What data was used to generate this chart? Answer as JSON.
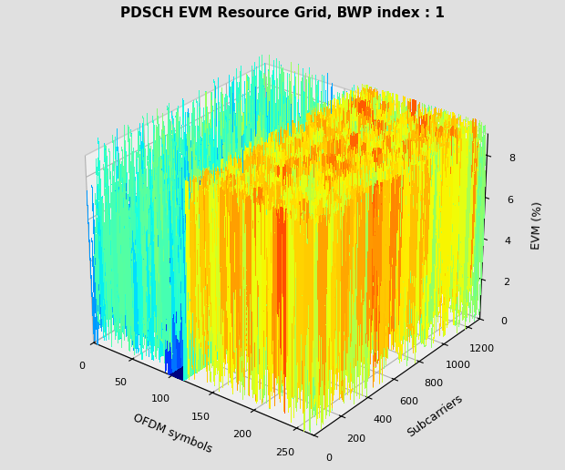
{
  "title": "PDSCH EVM Resource Grid, BWP index : 1",
  "xlabel": "OFDM symbols",
  "ylabel": "Subcarriers",
  "zlabel": "EVM (%)",
  "n_symbols": 270,
  "n_subcarriers": 1300,
  "block1_sym_start": 0,
  "block1_sym_end": 95,
  "block2_sym_start": 115,
  "block2_sym_end": 270,
  "block1_evm_mean": 3.5,
  "block2_evm_mean": 6.5,
  "evm_spike_scale1": 4.0,
  "evm_spike_scale2": 3.0,
  "background_color": "#e0e0e0",
  "colormap": "jet",
  "elev": 28,
  "azim": -52,
  "xlim": [
    0,
    270
  ],
  "ylim": [
    0,
    1300
  ],
  "zlim": [
    0,
    9
  ],
  "xticks": [
    0,
    50,
    100,
    150,
    200,
    250
  ],
  "yticks": [
    0,
    200,
    400,
    600,
    800,
    1000,
    1200
  ],
  "zticks": [
    0,
    2,
    4,
    6,
    8
  ],
  "vmin": 0,
  "vmax": 9,
  "seed": 7,
  "n_sym_pts": 270,
  "n_sub_pts": 260
}
